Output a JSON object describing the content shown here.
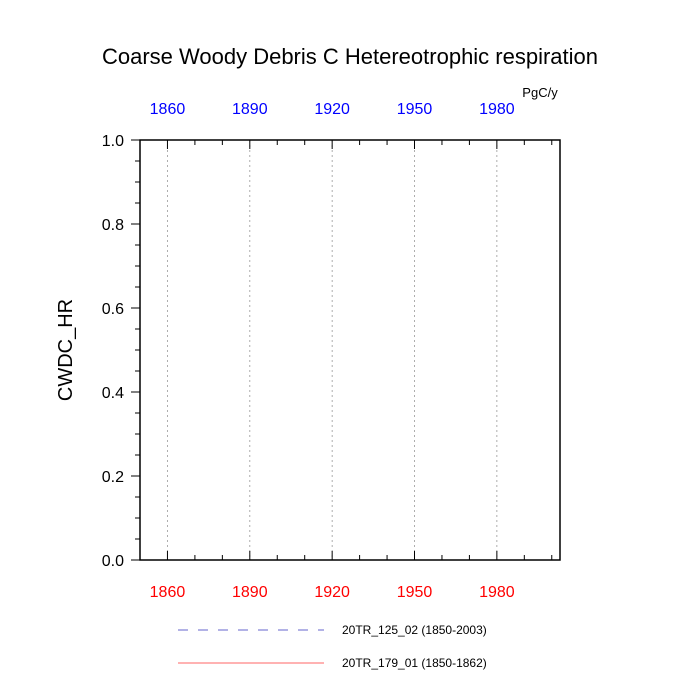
{
  "chart_data": {
    "type": "line",
    "title": "Coarse Woody Debris C Hetereotrophic respiration",
    "units": "PgC/y",
    "ylabel": "CWDC_HR",
    "xlim": [
      1850,
      2003
    ],
    "ylim": [
      0,
      1
    ],
    "x_ticks_bottom": [
      1860,
      1890,
      1920,
      1950,
      1980
    ],
    "x_ticks_top": [
      1860,
      1890,
      1920,
      1950,
      1980
    ],
    "y_ticks": [
      "0.0",
      "0.2",
      "0.4",
      "0.6",
      "0.8",
      "1.0"
    ],
    "y_tick_values": [
      0,
      0.2,
      0.4,
      0.6,
      0.8,
      1.0
    ],
    "grid": "vertical dotted at major x ticks",
    "colors": {
      "bottom_axis": "#ff0000",
      "top_axis": "#0000ff"
    },
    "series": [
      {
        "name": "20TR_125_02 (1850-2003)",
        "style": "dashed",
        "color": "#6666cc",
        "x": [
          1850,
          2003
        ],
        "y": [
          0,
          0
        ]
      },
      {
        "name": "20TR_179_01 (1850-1862)",
        "style": "solid",
        "color": "#ff6666",
        "x": [
          1850,
          1862
        ],
        "y": [
          0,
          0
        ]
      }
    ],
    "legend_placement": "bottom"
  }
}
